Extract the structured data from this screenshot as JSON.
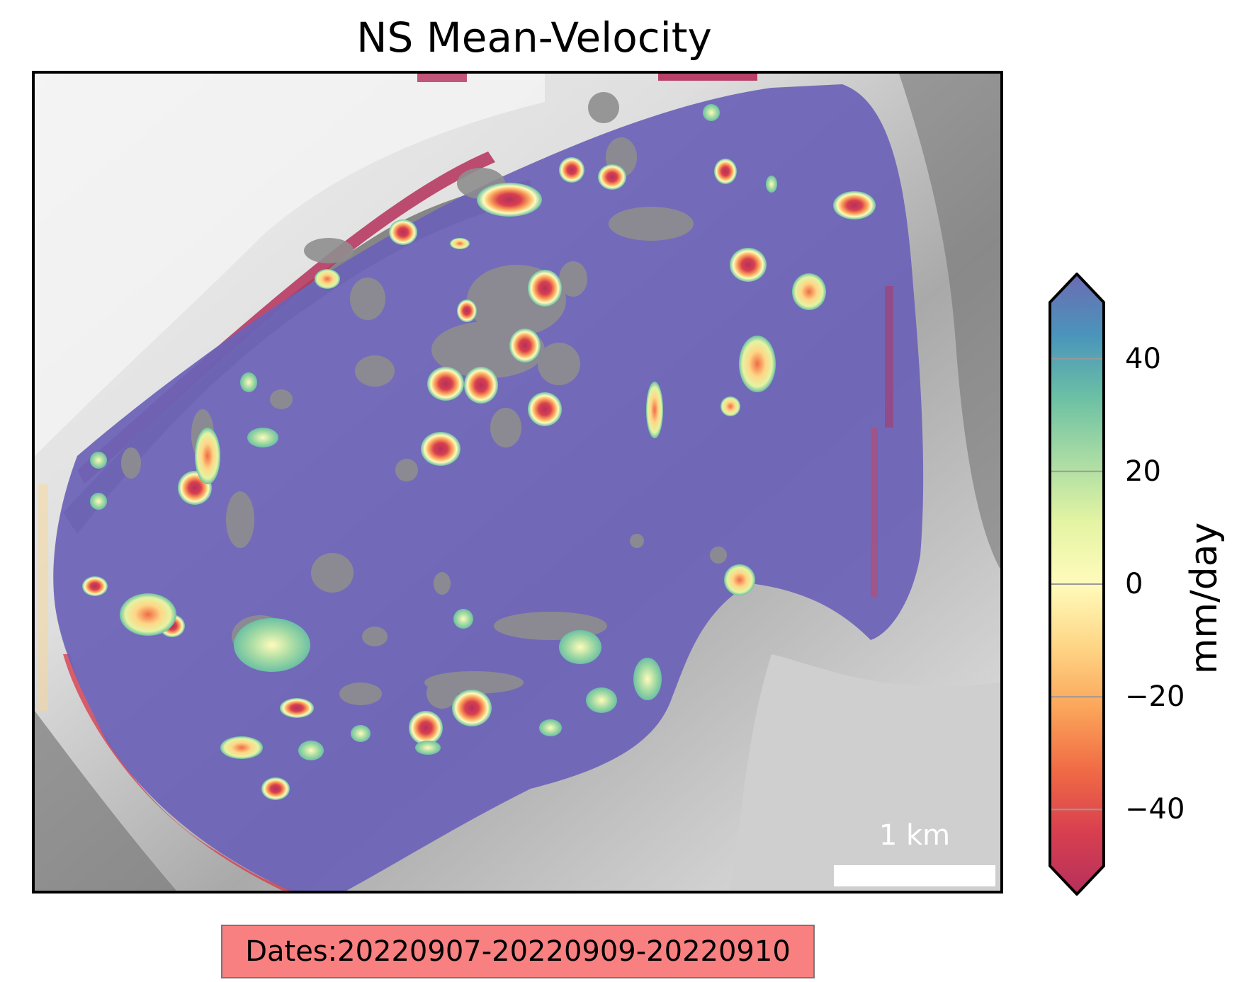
{
  "title": "NS Mean-Velocity",
  "map": {
    "scale_bar_label": "1 km",
    "scale_bar_km": 1
  },
  "colorbar": {
    "label": "mm/day",
    "colormap": "Spectral",
    "vmin": -50,
    "vmax": 50,
    "extend": "both",
    "ticks": [
      {
        "value": 40,
        "label": "40"
      },
      {
        "value": 20,
        "label": "20"
      },
      {
        "value": 0,
        "label": "0"
      },
      {
        "value": -20,
        "label": "−20"
      },
      {
        "value": -40,
        "label": "−40"
      }
    ],
    "colors": [
      "#b5305c",
      "#d83f4f",
      "#f06b45",
      "#fba55a",
      "#fed686",
      "#fffbbb",
      "#e4f4a3",
      "#a9dca4",
      "#6cc0a4",
      "#4a95bb",
      "#6c6bb3"
    ]
  },
  "annotation": {
    "dates_text": "Dates:20220907-20220909-20220910",
    "box_color": "#f88080"
  }
}
